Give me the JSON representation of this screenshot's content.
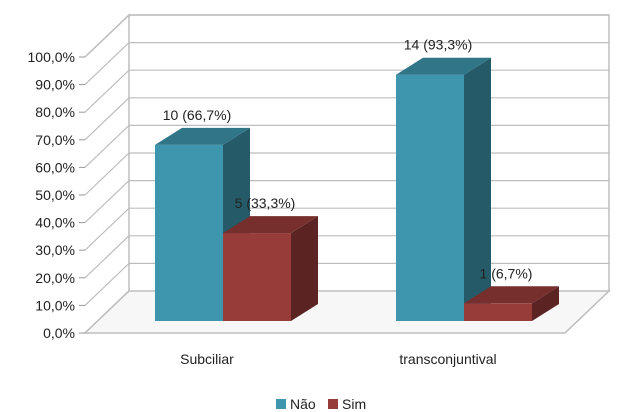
{
  "chart_data": {
    "type": "bar",
    "categories": [
      "Subciliar",
      "transconjuntival"
    ],
    "series": [
      {
        "name": "Não",
        "values": [
          66.7,
          93.3
        ],
        "labels": [
          "10 (66,7%)",
          "14 (93,3%)"
        ],
        "color": "#3d96ae"
      },
      {
        "name": "Sim",
        "values": [
          33.3,
          6.7
        ],
        "labels": [
          "5 (33,3%)",
          "1 (6,7%)"
        ],
        "color": "#983c3a"
      }
    ],
    "ylim": [
      0,
      100
    ],
    "yticks": [
      "0,0%",
      "10,0%",
      "20,0%",
      "30,0%",
      "40,0%",
      "50,0%",
      "60,0%",
      "70,0%",
      "80,0%",
      "90,0%",
      "100,0%"
    ],
    "style": "3d-column",
    "grid": true,
    "legend": "bottom"
  }
}
